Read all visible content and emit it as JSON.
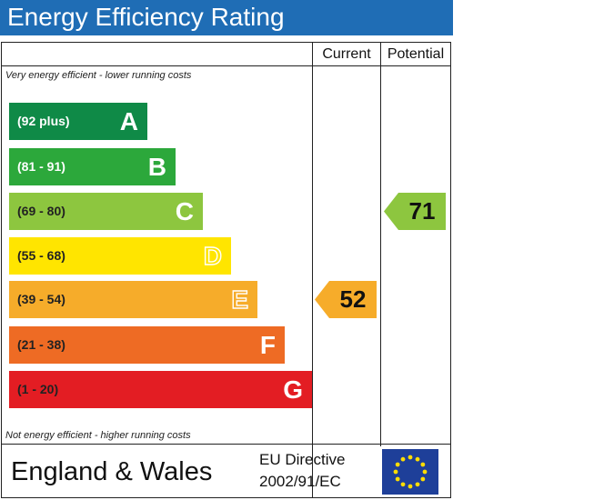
{
  "title": "Energy Efficiency Rating",
  "columns": {
    "current": "Current",
    "potential": "Potential"
  },
  "top_note": "Very energy efficient - lower running costs",
  "bottom_note": "Not energy efficient - higher running costs",
  "footer": {
    "country": "England & Wales",
    "directive_line1": "EU Directive",
    "directive_line2": "2002/91/EC"
  },
  "colors": {
    "title_bar": "#1f6db5",
    "A": "#0f8a47",
    "B": "#2ca83b",
    "C": "#8dc63f",
    "D": "#ffe500",
    "E": "#f6ac2a",
    "F": "#ee6b24",
    "G": "#e31d23",
    "eu_flag": "#1e3f99",
    "eu_stars": "#ffdd00"
  },
  "chart_data": {
    "type": "bar",
    "title": "Energy Efficiency Rating",
    "categories": [
      "A",
      "B",
      "C",
      "D",
      "E",
      "F",
      "G"
    ],
    "ranges": [
      "(92 plus)",
      "(81 - 91)",
      "(69 - 80)",
      "(55 - 68)",
      "(39 - 54)",
      "(21 - 38)",
      "(1 - 20)"
    ],
    "series": [
      {
        "name": "Current",
        "value": 52,
        "band": "E"
      },
      {
        "name": "Potential",
        "value": 71,
        "band": "C"
      }
    ]
  }
}
